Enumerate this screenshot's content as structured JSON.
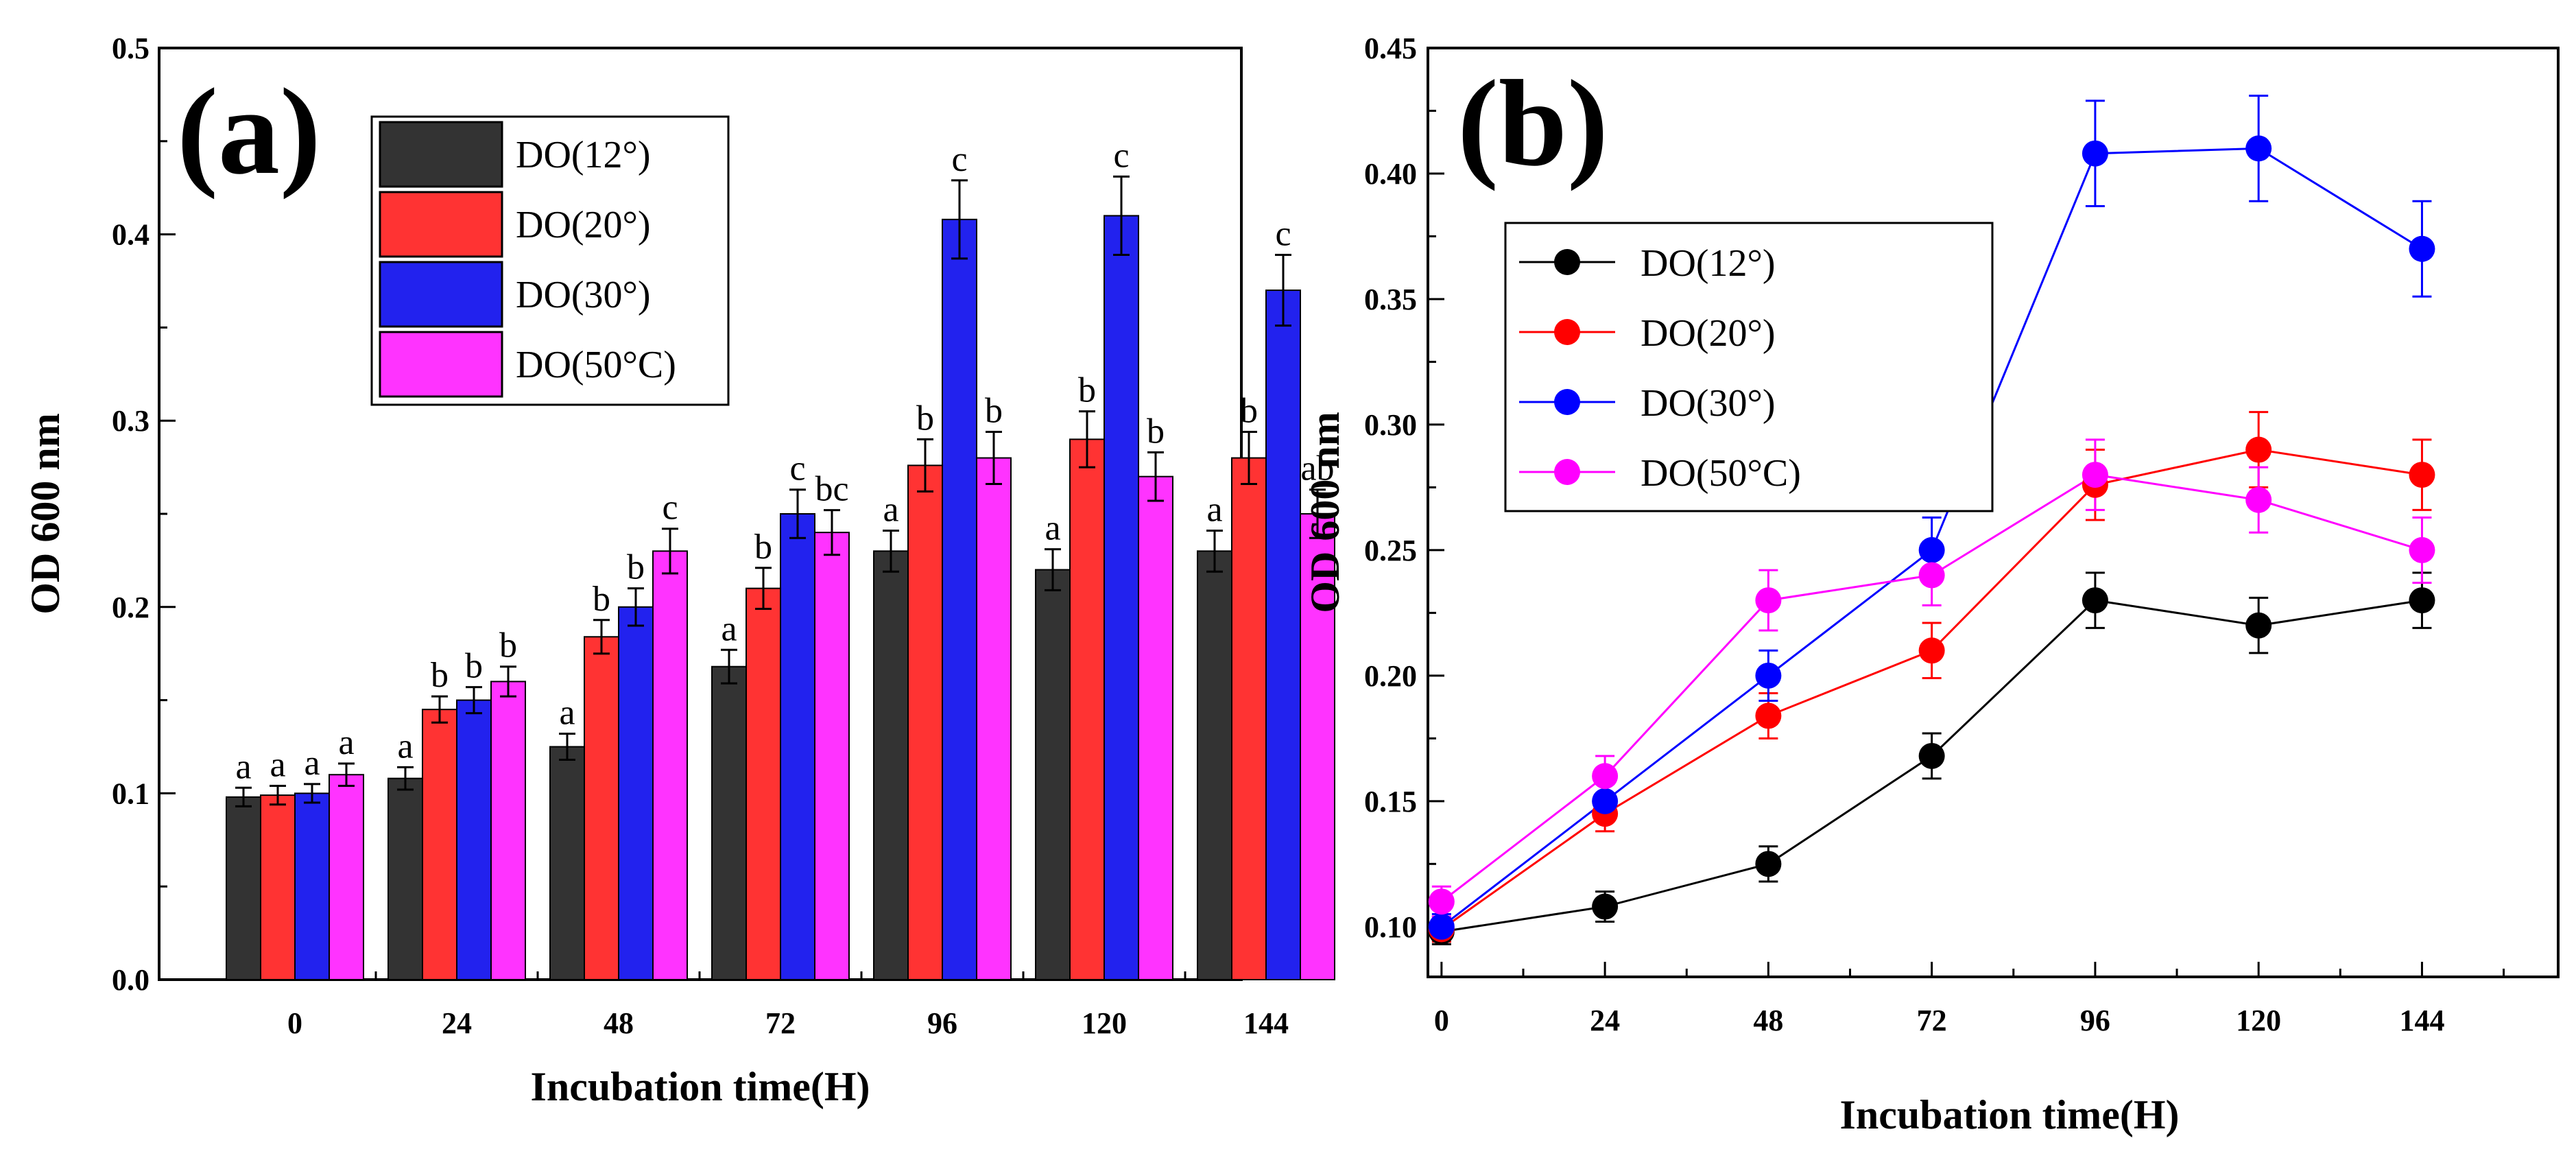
{
  "chart_data": [
    {
      "type": "bar",
      "panel_label": "(a)",
      "xlabel": "Incubation time(H)",
      "ylabel": "OD 600 nm",
      "ylim": [
        0,
        0.5
      ],
      "yticks": [
        "0.0",
        "0.1",
        "0.2",
        "0.3",
        "0.4",
        "0.5"
      ],
      "categories": [
        "0",
        "24",
        "48",
        "72",
        "96",
        "120",
        "144"
      ],
      "series": [
        {
          "name": "DO(12°)",
          "color": "#333333",
          "values": [
            0.098,
            0.108,
            0.125,
            0.168,
            0.23,
            0.22,
            0.23
          ],
          "errors": [
            0.005,
            0.006,
            0.007,
            0.009,
            0.011,
            0.011,
            0.011
          ],
          "letters": [
            "a",
            "a",
            "a",
            "a",
            "a",
            "a",
            "a"
          ]
        },
        {
          "name": "DO(20°)",
          "color": "#ff3333",
          "values": [
            0.099,
            0.145,
            0.184,
            0.21,
            0.276,
            0.29,
            0.28
          ],
          "errors": [
            0.005,
            0.007,
            0.009,
            0.011,
            0.014,
            0.015,
            0.014
          ],
          "letters": [
            "a",
            "b",
            "b",
            "b",
            "b",
            "b",
            "b"
          ]
        },
        {
          "name": "DO(30°)",
          "color": "#2222ee",
          "values": [
            0.1,
            0.15,
            0.2,
            0.25,
            0.408,
            0.41,
            0.37
          ],
          "errors": [
            0.005,
            0.007,
            0.01,
            0.013,
            0.021,
            0.021,
            0.019
          ],
          "letters": [
            "a",
            "b",
            "b",
            "c",
            "c",
            "c",
            "c"
          ]
        },
        {
          "name": "DO(50°C)",
          "color": "#ff33ff",
          "values": [
            0.11,
            0.16,
            0.23,
            0.24,
            0.28,
            0.27,
            0.25
          ],
          "errors": [
            0.006,
            0.008,
            0.012,
            0.012,
            0.014,
            0.013,
            0.013
          ],
          "letters": [
            "a",
            "b",
            "c",
            "bc",
            "b",
            "b",
            "ab"
          ]
        }
      ],
      "legend_position": "top-center"
    },
    {
      "type": "line",
      "panel_label": "(b)",
      "xlabel": "Incubation time(H)",
      "ylabel": "OD 600 nm",
      "xlim": [
        -2,
        164
      ],
      "ylim": [
        0.08,
        0.45
      ],
      "xticks": [
        "0",
        "24",
        "48",
        "72",
        "96",
        "120",
        "144"
      ],
      "yticks": [
        "0.10",
        "0.15",
        "0.20",
        "0.25",
        "0.30",
        "0.35",
        "0.40",
        "0.45"
      ],
      "x": [
        0,
        24,
        48,
        72,
        96,
        120,
        144
      ],
      "series": [
        {
          "name": "DO(12°)",
          "color": "#000000",
          "values": [
            0.098,
            0.108,
            0.125,
            0.168,
            0.23,
            0.22,
            0.23
          ],
          "errors": [
            0.005,
            0.006,
            0.007,
            0.009,
            0.011,
            0.011,
            0.011
          ]
        },
        {
          "name": "DO(20°)",
          "color": "#ff0000",
          "values": [
            0.099,
            0.145,
            0.184,
            0.21,
            0.276,
            0.29,
            0.28
          ],
          "errors": [
            0.005,
            0.007,
            0.009,
            0.011,
            0.014,
            0.015,
            0.014
          ]
        },
        {
          "name": "DO(30°)",
          "color": "#0000ff",
          "values": [
            0.1,
            0.15,
            0.2,
            0.25,
            0.408,
            0.41,
            0.37
          ],
          "errors": [
            0.005,
            0.007,
            0.01,
            0.013,
            0.021,
            0.021,
            0.019
          ]
        },
        {
          "name": "DO(50°C)",
          "color": "#ff00ff",
          "values": [
            0.11,
            0.16,
            0.23,
            0.24,
            0.28,
            0.27,
            0.25
          ],
          "errors": [
            0.006,
            0.008,
            0.012,
            0.012,
            0.014,
            0.013,
            0.013
          ]
        }
      ],
      "legend_position": "top-left"
    }
  ]
}
